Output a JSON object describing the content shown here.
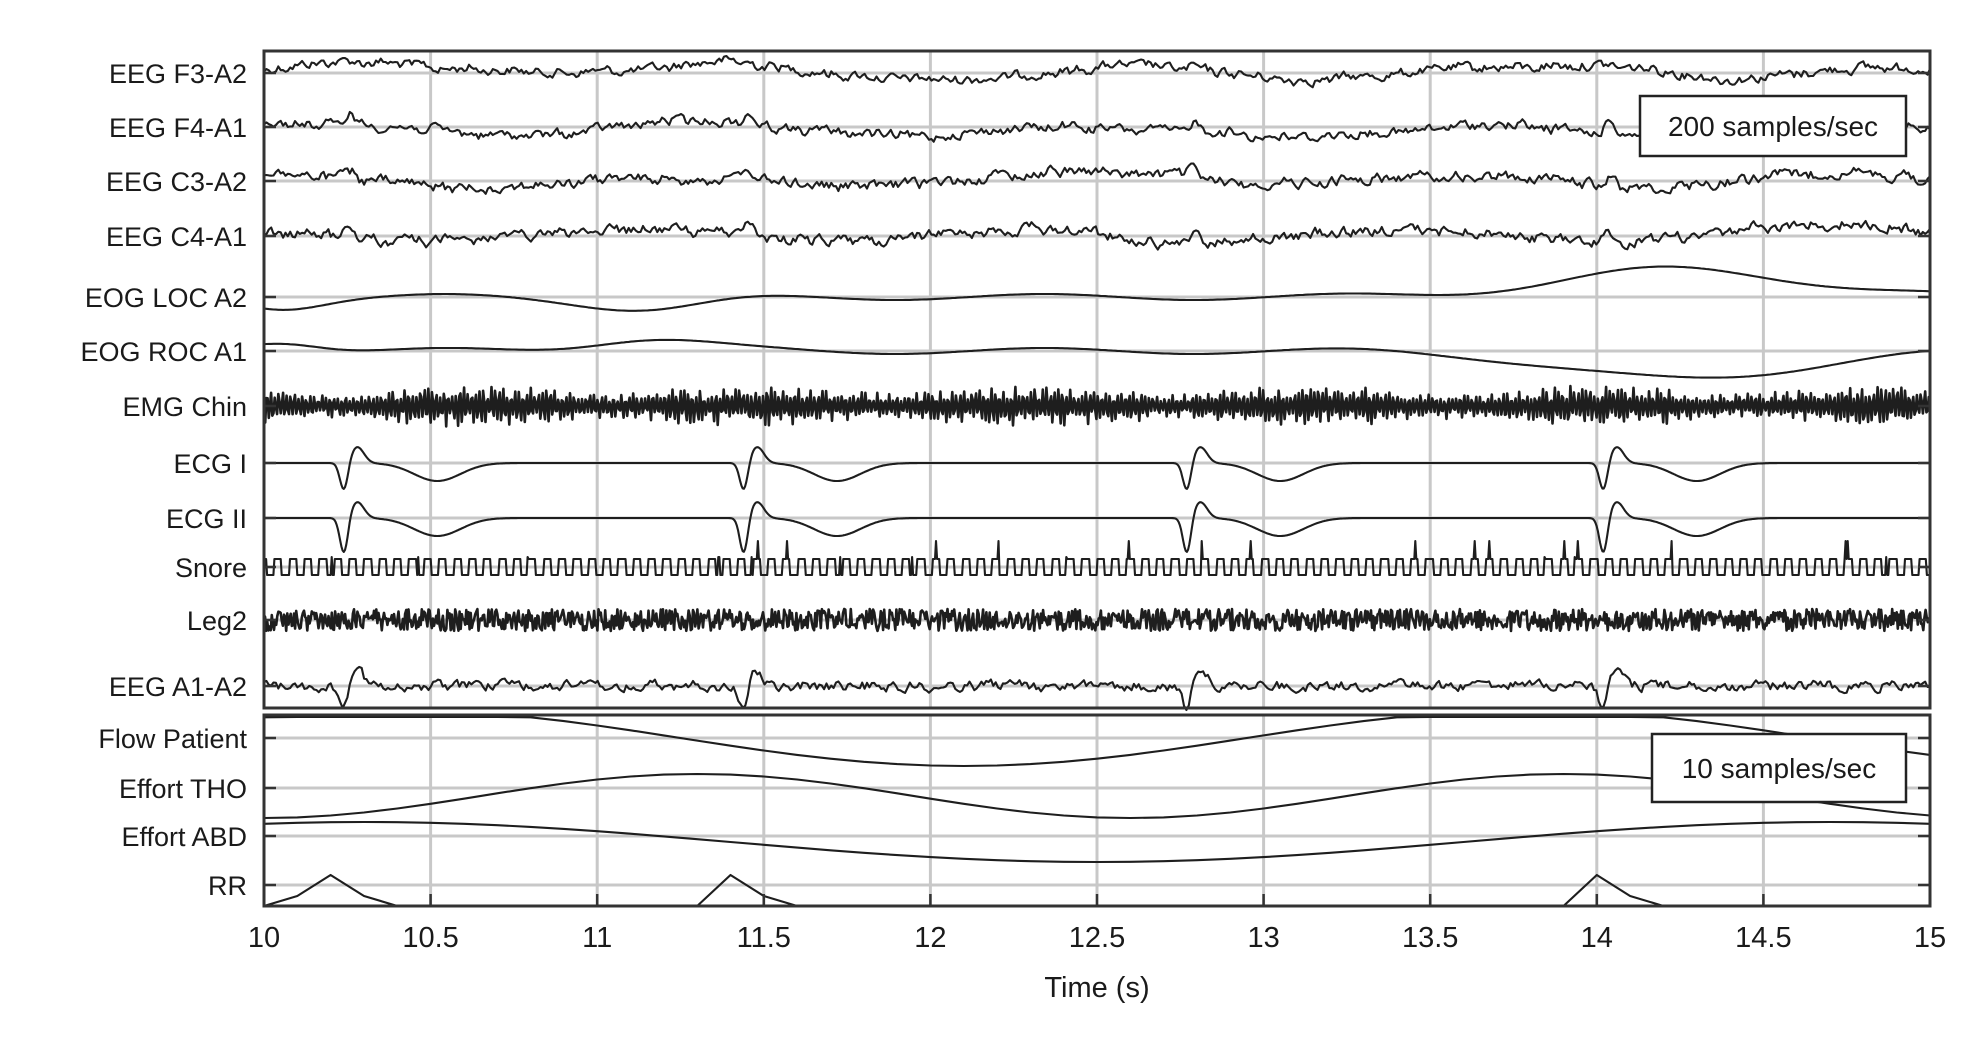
{
  "chart_data": {
    "type": "line",
    "xlabel": "Time (s)",
    "xlim": [
      10,
      15
    ],
    "x_ticks": [
      "10",
      "10.5",
      "11",
      "11.5",
      "12",
      "12.5",
      "13",
      "13.5",
      "14",
      "14.5",
      "15"
    ],
    "grid": true,
    "panels": [
      {
        "annotation": "200 samples/sec",
        "channels": [
          "EEG F3-A2",
          "EEG F4-A1",
          "EEG C3-A2",
          "EEG C4-A1",
          "EOG LOC A2",
          "EOG ROC A1",
          "EMG Chin",
          "ECG I",
          "ECG II",
          "Snore",
          "Leg2",
          "EEG A1-A2"
        ]
      },
      {
        "annotation": "10 samples/sec",
        "channels": [
          "Flow Patient",
          "Effort THO",
          "Effort ABD",
          "RR"
        ]
      }
    ],
    "ecg_r_peaks_s": [
      10.24,
      11.44,
      12.77,
      14.02
    ],
    "rr_peaks_s": [
      10.2,
      11.4,
      14.0
    ]
  }
}
